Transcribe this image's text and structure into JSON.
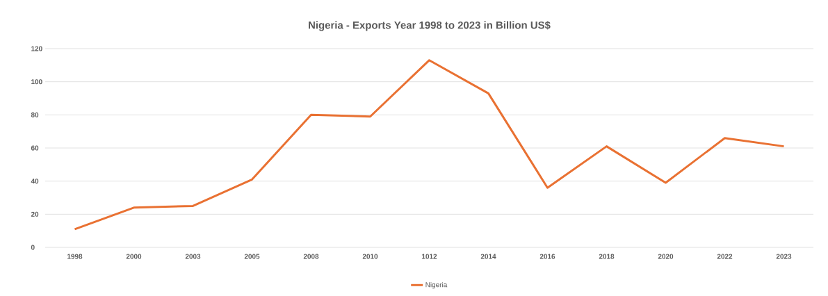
{
  "chart_data": {
    "type": "line",
    "title": "Nigeria - Exports Year 1998 to 2023 in Billion US$",
    "categories": [
      "1998",
      "2000",
      "2003",
      "2005",
      "2008",
      "2010",
      "1012",
      "2014",
      "2016",
      "2018",
      "2020",
      "2022",
      "2023"
    ],
    "series": [
      {
        "name": "Nigeria",
        "color": "#e97132",
        "values": [
          11,
          24,
          25,
          41,
          80,
          79,
          113,
          93,
          36,
          61,
          39,
          66,
          61
        ]
      }
    ],
    "ylim": [
      0,
      120
    ],
    "yticks": [
      0,
      20,
      40,
      60,
      80,
      100,
      120
    ],
    "grid": "y",
    "legend": "bottom"
  }
}
